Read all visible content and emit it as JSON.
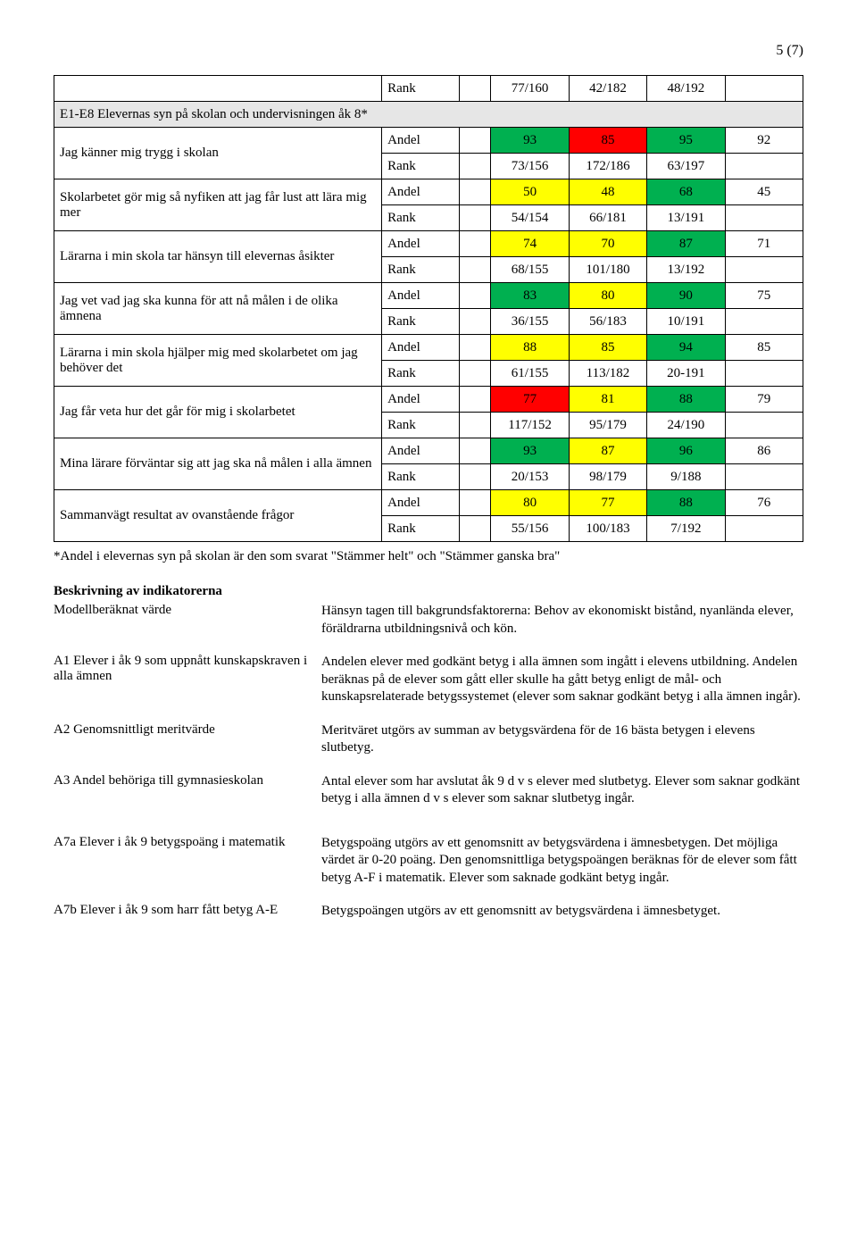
{
  "page_number": "5 (7)",
  "colors": {
    "section_bg": "#e6e6e6",
    "green": "#00b050",
    "yellow": "#ffff00",
    "red": "#ff0000",
    "border": "#000000"
  },
  "table": {
    "top_rank": {
      "label": "",
      "metric": "Rank",
      "values": [
        "77/160",
        "42/182",
        "48/192",
        ""
      ]
    },
    "section": "E1-E8 Elevernas syn på skolan och undervisningen åk 8*",
    "rows": [
      {
        "label": "Jag känner mig trygg i skolan",
        "andel": [
          "93",
          "85",
          "95",
          "92"
        ],
        "andel_colors": [
          "green",
          "red",
          "green",
          "none"
        ],
        "rank": [
          "73/156",
          "172/186",
          "63/197",
          ""
        ]
      },
      {
        "label": "Skolarbetet gör mig så nyfiken att jag får lust att lära mig mer",
        "andel": [
          "50",
          "48",
          "68",
          "45"
        ],
        "andel_colors": [
          "yellow",
          "yellow",
          "green",
          "none"
        ],
        "rank": [
          "54/154",
          "66/181",
          "13/191",
          ""
        ]
      },
      {
        "label": "Lärarna i min skola tar hänsyn till elevernas åsikter",
        "andel": [
          "74",
          "70",
          "87",
          "71"
        ],
        "andel_colors": [
          "yellow",
          "yellow",
          "green",
          "none"
        ],
        "rank": [
          "68/155",
          "101/180",
          "13/192",
          ""
        ]
      },
      {
        "label": "Jag vet vad jag ska kunna för att nå målen i de olika ämnena",
        "andel": [
          "83",
          "80",
          "90",
          "75"
        ],
        "andel_colors": [
          "green",
          "yellow",
          "green",
          "none"
        ],
        "rank": [
          "36/155",
          "56/183",
          "10/191",
          ""
        ]
      },
      {
        "label": "Lärarna i min skola hjälper mig med skolarbetet om jag behöver det",
        "andel": [
          "88",
          "85",
          "94",
          "85"
        ],
        "andel_colors": [
          "yellow",
          "yellow",
          "green",
          "none"
        ],
        "rank": [
          "61/155",
          "113/182",
          "20-191",
          ""
        ]
      },
      {
        "label": "Jag får veta hur det går för mig i skolarbetet",
        "andel": [
          "77",
          "81",
          "88",
          "79"
        ],
        "andel_colors": [
          "red",
          "yellow",
          "green",
          "none"
        ],
        "rank": [
          "117/152",
          "95/179",
          "24/190",
          ""
        ]
      },
      {
        "label": "Mina lärare förväntar sig att jag ska nå målen i alla ämnen",
        "andel": [
          "93",
          "87",
          "96",
          "86"
        ],
        "andel_colors": [
          "green",
          "yellow",
          "green",
          "none"
        ],
        "rank": [
          "20/153",
          "98/179",
          "9/188",
          ""
        ]
      },
      {
        "label": "Sammanvägt resultat av ovanstående frågor",
        "andel": [
          "80",
          "77",
          "88",
          "76"
        ],
        "andel_colors": [
          "yellow",
          "yellow",
          "green",
          "none"
        ],
        "rank": [
          "55/156",
          "100/183",
          "7/192",
          ""
        ]
      }
    ],
    "metric_andel": "Andel",
    "metric_rank": "Rank"
  },
  "footnote": "*Andel i elevernas syn på skolan är den som svarat \"Stämmer helt\" och \"Stämmer ganska bra\"",
  "descriptions": {
    "heading": "Beskrivning av indikatorerna",
    "items": [
      {
        "term": "Modellberäknat värde",
        "def": "Hänsyn tagen till bakgrundsfaktorerna: Behov av ekonomiskt bistånd, nyanlända elever, föräldrarna utbildningsnivå och kön."
      },
      {
        "term": "A1 Elever i åk 9 som uppnått kunskapskraven i alla ämnen",
        "def": "Andelen elever med godkänt betyg i alla ämnen som ingått i elevens utbildning. Andelen beräknas på de elever som gått eller skulle ha gått betyg enligt de mål- och kunskapsrelaterade betygssystemet (elever som saknar godkänt betyg i alla ämnen ingår)."
      },
      {
        "term": "A2 Genomsnittligt meritvärde",
        "def": "Meritväret utgörs av summan av betygsvärdena för de 16 bästa betygen i elevens slutbetyg."
      },
      {
        "term": "A3 Andel behöriga till gymnasieskolan",
        "def": "Antal elever som har avslutat åk 9 d v s elever med slutbetyg. Elever som saknar godkänt betyg i alla ämnen d v s elever som saknar slutbetyg ingår."
      },
      {
        "term": "A7a Elever i åk 9 betygspoäng i matematik",
        "def": "Betygspoäng utgörs av ett genomsnitt av betygsvärdena i ämnesbetygen. Det möjliga värdet är 0-20 poäng. Den genomsnittliga betygspoängen beräknas för de elever som fått betyg A-F i matematik. Elever som saknade godkänt betyg ingår.",
        "gap": true
      },
      {
        "term": "A7b Elever i åk 9 som harr fått betyg A-E",
        "def": "Betygspoängen utgörs av ett genomsnitt av betygsvärdena i ämnesbetyget."
      }
    ]
  }
}
